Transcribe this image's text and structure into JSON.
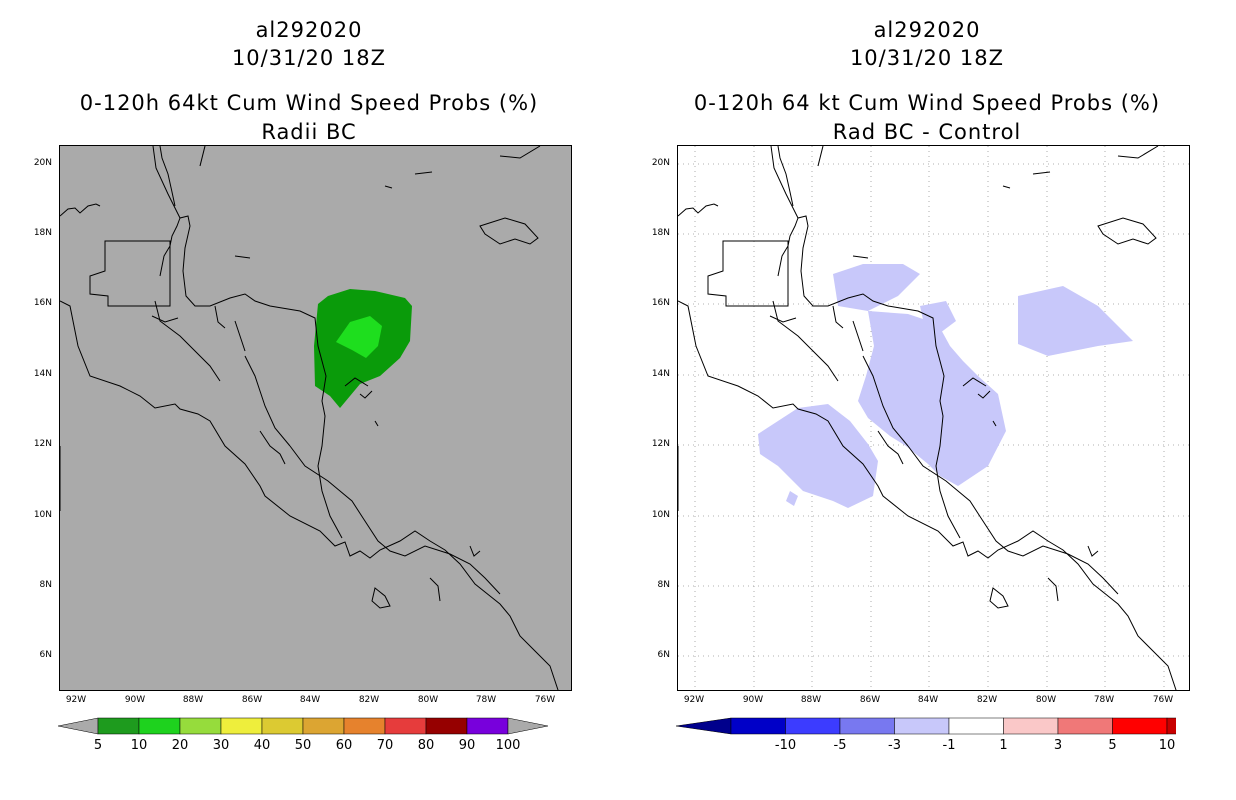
{
  "left_panel": {
    "title_line1": "al292020",
    "title_line2": "10/31/20 18Z",
    "title_line3": "0-120h 64kt Cum Wind Speed Probs (%)",
    "title_line4": "Radii BC",
    "background_color": "#aaaaaa",
    "colorbar": {
      "labels": [
        "5",
        "10",
        "20",
        "30",
        "40",
        "50",
        "60",
        "70",
        "80",
        "90",
        "100"
      ],
      "colors": [
        "#1e9b1e",
        "#1ed21e",
        "#96dc3c",
        "#eeee3c",
        "#dcca32",
        "#dca532",
        "#e6822d",
        "#e63c3c",
        "#960000",
        "#7800dc"
      ],
      "end_color": "#aaaaaa"
    },
    "contour_colors": {
      "outer": "#0a9b0a",
      "inner": "#1ede1e"
    }
  },
  "right_panel": {
    "title_line1": "al292020",
    "title_line2": "10/31/20 18Z",
    "title_line3": "0-120h 64 kt Cum Wind Speed Probs (%)",
    "title_line4": "Rad BC - Control",
    "background_color": "#ffffff",
    "colorbar": {
      "labels": [
        "-10",
        "-5",
        "-3",
        "-1",
        "1",
        "3",
        "5",
        "10"
      ],
      "colors": [
        "#0000c8",
        "#3c3cff",
        "#7878f0",
        "#c8c8fa",
        "#ffffff",
        "#fac8c8",
        "#f07878",
        "#ff0000",
        "#c80000"
      ],
      "end_left": "#00008c",
      "end_right": "#780000"
    },
    "contour_color": "#c8c8fa"
  },
  "axes": {
    "lat_labels": [
      "20N",
      "18N",
      "16N",
      "14N",
      "12N",
      "10N",
      "8N",
      "6N"
    ],
    "lon_labels": [
      "92W",
      "90W",
      "88W",
      "86W",
      "84W",
      "82W",
      "80W",
      "78W",
      "76W"
    ]
  }
}
